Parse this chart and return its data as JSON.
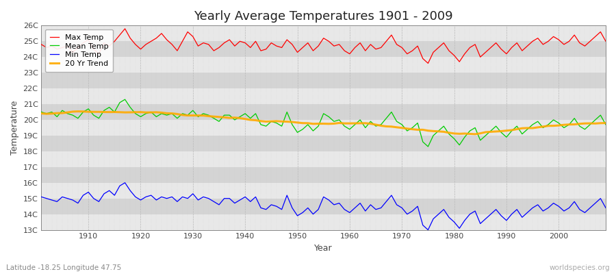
{
  "title": "Yearly Average Temperatures 1901 - 2009",
  "xlabel": "Year",
  "ylabel": "Temperature",
  "subtitle": "Latitude -18.25 Longitude 47.75",
  "watermark": "worldspecies.org",
  "year_start": 1901,
  "year_end": 2009,
  "legend_labels": [
    "Max Temp",
    "Mean Temp",
    "Min Temp",
    "20 Yr Trend"
  ],
  "legend_colors": [
    "#ff0000",
    "#00cc00",
    "#0000ff",
    "#ffaa00"
  ],
  "bg_color": "#ffffff",
  "plot_bg_color": "#dcdcdc",
  "yticks": [
    13,
    14,
    15,
    16,
    17,
    18,
    19,
    20,
    21,
    22,
    23,
    24,
    25,
    26
  ],
  "ylim": [
    13,
    26
  ],
  "xticks": [
    1910,
    1920,
    1930,
    1940,
    1950,
    1960,
    1970,
    1980,
    1990,
    2000
  ],
  "max_temps": [
    24.8,
    24.6,
    24.7,
    24.5,
    24.6,
    24.7,
    24.3,
    24.6,
    24.9,
    25.1,
    24.5,
    24.2,
    24.9,
    24.7,
    25.0,
    25.4,
    25.8,
    25.2,
    24.8,
    24.5,
    24.8,
    25.0,
    25.2,
    25.5,
    25.1,
    24.8,
    24.4,
    25.0,
    25.6,
    25.3,
    24.7,
    24.9,
    24.8,
    24.4,
    24.6,
    24.9,
    25.1,
    24.7,
    25.0,
    24.9,
    24.6,
    25.0,
    24.4,
    24.5,
    24.9,
    24.7,
    24.6,
    25.1,
    24.8,
    24.3,
    24.6,
    24.9,
    24.4,
    24.7,
    25.2,
    25.0,
    24.7,
    24.8,
    24.4,
    24.2,
    24.6,
    24.9,
    24.4,
    24.8,
    24.5,
    24.6,
    25.0,
    25.4,
    24.8,
    24.6,
    24.2,
    24.4,
    24.7,
    23.9,
    23.6,
    24.3,
    24.6,
    24.9,
    24.4,
    24.1,
    23.7,
    24.2,
    24.6,
    24.8,
    24.0,
    24.3,
    24.6,
    24.9,
    24.5,
    24.2,
    24.6,
    24.9,
    24.4,
    24.7,
    25.0,
    25.2,
    24.8,
    25.0,
    25.3,
    25.1,
    24.8,
    25.0,
    25.4,
    24.9,
    24.7,
    25.0,
    25.3,
    25.6,
    25.0
  ],
  "mean_temps": [
    20.5,
    20.4,
    20.5,
    20.2,
    20.6,
    20.4,
    20.3,
    20.1,
    20.5,
    20.7,
    20.3,
    20.1,
    20.6,
    20.8,
    20.5,
    21.1,
    21.3,
    20.8,
    20.4,
    20.2,
    20.4,
    20.5,
    20.2,
    20.4,
    20.3,
    20.4,
    20.1,
    20.4,
    20.3,
    20.6,
    20.2,
    20.4,
    20.3,
    20.1,
    19.9,
    20.3,
    20.3,
    20.0,
    20.2,
    20.4,
    20.1,
    20.4,
    19.7,
    19.6,
    19.9,
    19.8,
    19.6,
    20.5,
    19.7,
    19.2,
    19.4,
    19.7,
    19.3,
    19.6,
    20.4,
    20.2,
    19.9,
    20.0,
    19.6,
    19.4,
    19.7,
    20.0,
    19.5,
    19.9,
    19.6,
    19.7,
    20.1,
    20.5,
    19.9,
    19.7,
    19.3,
    19.5,
    19.8,
    18.6,
    18.3,
    19.0,
    19.3,
    19.6,
    19.1,
    18.8,
    18.4,
    18.9,
    19.3,
    19.5,
    18.7,
    19.0,
    19.3,
    19.6,
    19.2,
    18.9,
    19.3,
    19.6,
    19.1,
    19.4,
    19.7,
    19.9,
    19.5,
    19.7,
    20.0,
    19.8,
    19.5,
    19.7,
    20.1,
    19.6,
    19.4,
    19.7,
    20.0,
    20.3,
    19.7
  ],
  "min_temps": [
    15.1,
    15.0,
    14.9,
    14.8,
    15.1,
    15.0,
    14.9,
    14.7,
    15.2,
    15.4,
    15.0,
    14.8,
    15.3,
    15.5,
    15.2,
    15.8,
    16.0,
    15.5,
    15.1,
    14.9,
    15.1,
    15.2,
    14.9,
    15.1,
    15.0,
    15.1,
    14.8,
    15.1,
    15.0,
    15.3,
    14.9,
    15.1,
    15.0,
    14.8,
    14.6,
    15.0,
    15.0,
    14.7,
    14.9,
    15.1,
    14.8,
    15.1,
    14.4,
    14.3,
    14.6,
    14.5,
    14.3,
    15.2,
    14.4,
    13.9,
    14.1,
    14.4,
    14.0,
    14.3,
    15.1,
    14.9,
    14.6,
    14.7,
    14.3,
    14.1,
    14.4,
    14.7,
    14.2,
    14.6,
    14.3,
    14.4,
    14.8,
    15.2,
    14.6,
    14.4,
    14.0,
    14.2,
    14.5,
    13.3,
    13.0,
    13.7,
    14.0,
    14.3,
    13.8,
    13.5,
    13.1,
    13.6,
    14.0,
    14.2,
    13.4,
    13.7,
    14.0,
    14.3,
    13.9,
    13.6,
    14.0,
    14.3,
    13.8,
    14.1,
    14.4,
    14.6,
    14.2,
    14.4,
    14.7,
    14.5,
    14.2,
    14.4,
    14.8,
    14.3,
    14.1,
    14.4,
    14.7,
    15.0,
    14.4
  ]
}
